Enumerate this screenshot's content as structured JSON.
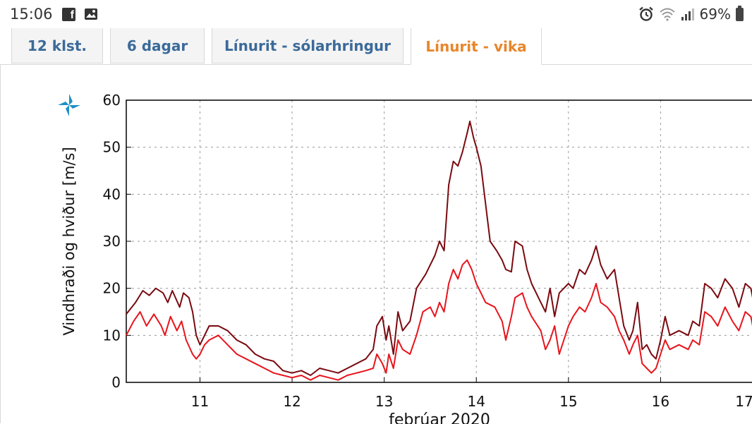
{
  "status_bar": {
    "time": "15:06",
    "battery": "69%",
    "icons": [
      "facebook-icon",
      "image-icon",
      "alarm-icon",
      "wifi-icon",
      "signal-icon",
      "battery-icon"
    ]
  },
  "tabs": [
    {
      "label": "12 klst.",
      "active": false
    },
    {
      "label": "6 dagar",
      "active": false
    },
    {
      "label": "Línurit - sólarhringur",
      "active": false
    },
    {
      "label": "Línurit - vika",
      "active": true
    }
  ],
  "colors": {
    "tab_text": "#3b6a9a",
    "tab_active_text": "#e8862a",
    "gust_line": "#7a0a10",
    "wind_line": "#e8141c",
    "logo": "#1e8fc8"
  },
  "chart_data": {
    "type": "line",
    "title": "",
    "xlabel": "febrúar 2020",
    "ylabel": "Vindhraði og hviður [m/s]",
    "xlim": [
      10.2,
      17
    ],
    "ylim": [
      0,
      60
    ],
    "x_ticks": [
      11,
      12,
      13,
      14,
      15,
      16,
      17
    ],
    "x_tick_labels": [
      "11",
      "12",
      "13",
      "14",
      "15",
      "16",
      "17"
    ],
    "y_ticks": [
      0,
      10,
      20,
      30,
      40,
      50,
      60
    ],
    "y_tick_labels": [
      "0",
      "10",
      "20",
      "30",
      "40",
      "50",
      "60"
    ],
    "grid": true,
    "series": [
      {
        "color": "#7a0a10",
        "points": [
          [
            10.2,
            14.5
          ],
          [
            10.3,
            17
          ],
          [
            10.38,
            19.5
          ],
          [
            10.45,
            18.5
          ],
          [
            10.52,
            20
          ],
          [
            10.6,
            19
          ],
          [
            10.65,
            17
          ],
          [
            10.7,
            19.5
          ],
          [
            10.78,
            16
          ],
          [
            10.82,
            19
          ],
          [
            10.88,
            18
          ],
          [
            10.92,
            15
          ],
          [
            10.96,
            10
          ],
          [
            11.0,
            8
          ],
          [
            11.05,
            10
          ],
          [
            11.1,
            12
          ],
          [
            11.2,
            12
          ],
          [
            11.3,
            11
          ],
          [
            11.4,
            9
          ],
          [
            11.5,
            8
          ],
          [
            11.6,
            6
          ],
          [
            11.7,
            5
          ],
          [
            11.8,
            4.5
          ],
          [
            11.9,
            2.5
          ],
          [
            12.0,
            2
          ],
          [
            12.1,
            2.5
          ],
          [
            12.2,
            1.5
          ],
          [
            12.3,
            3
          ],
          [
            12.4,
            2.5
          ],
          [
            12.5,
            2
          ],
          [
            12.6,
            3
          ],
          [
            12.7,
            4
          ],
          [
            12.8,
            5
          ],
          [
            12.88,
            7
          ],
          [
            12.92,
            12
          ],
          [
            12.98,
            14
          ],
          [
            13.02,
            9
          ],
          [
            13.05,
            12
          ],
          [
            13.1,
            6
          ],
          [
            13.15,
            15
          ],
          [
            13.2,
            11
          ],
          [
            13.28,
            13
          ],
          [
            13.35,
            20
          ],
          [
            13.45,
            23
          ],
          [
            13.55,
            27
          ],
          [
            13.6,
            30
          ],
          [
            13.65,
            28
          ],
          [
            13.7,
            42
          ],
          [
            13.75,
            47
          ],
          [
            13.8,
            46
          ],
          [
            13.85,
            49
          ],
          [
            13.9,
            53
          ],
          [
            13.93,
            55.5
          ],
          [
            13.97,
            52
          ],
          [
            14.0,
            50
          ],
          [
            14.05,
            46
          ],
          [
            14.1,
            38
          ],
          [
            14.15,
            30
          ],
          [
            14.22,
            28
          ],
          [
            14.28,
            26
          ],
          [
            14.32,
            24
          ],
          [
            14.38,
            23.5
          ],
          [
            14.42,
            30
          ],
          [
            14.5,
            29
          ],
          [
            14.55,
            24
          ],
          [
            14.6,
            21
          ],
          [
            14.7,
            17
          ],
          [
            14.75,
            15
          ],
          [
            14.8,
            20
          ],
          [
            14.85,
            14
          ],
          [
            14.9,
            19
          ],
          [
            15.0,
            21
          ],
          [
            15.05,
            20
          ],
          [
            15.12,
            24
          ],
          [
            15.18,
            23
          ],
          [
            15.25,
            26
          ],
          [
            15.3,
            29
          ],
          [
            15.35,
            25
          ],
          [
            15.42,
            22
          ],
          [
            15.5,
            24
          ],
          [
            15.55,
            18
          ],
          [
            15.6,
            12
          ],
          [
            15.66,
            9
          ],
          [
            15.7,
            11
          ],
          [
            15.75,
            17
          ],
          [
            15.8,
            7
          ],
          [
            15.85,
            8
          ],
          [
            15.9,
            6
          ],
          [
            15.95,
            5
          ],
          [
            16.0,
            9
          ],
          [
            16.05,
            14
          ],
          [
            16.1,
            10
          ],
          [
            16.2,
            11
          ],
          [
            16.3,
            10
          ],
          [
            16.35,
            13
          ],
          [
            16.42,
            12
          ],
          [
            16.48,
            21
          ],
          [
            16.55,
            20
          ],
          [
            16.62,
            18
          ],
          [
            16.7,
            22
          ],
          [
            16.78,
            20
          ],
          [
            16.85,
            16
          ],
          [
            16.92,
            21
          ],
          [
            16.98,
            20
          ],
          [
            17.0,
            18
          ]
        ]
      },
      {
        "color": "#e8141c",
        "points": [
          [
            10.2,
            10
          ],
          [
            10.28,
            13
          ],
          [
            10.35,
            15
          ],
          [
            10.42,
            12
          ],
          [
            10.5,
            14.5
          ],
          [
            10.58,
            12
          ],
          [
            10.62,
            10
          ],
          [
            10.68,
            14
          ],
          [
            10.75,
            11
          ],
          [
            10.8,
            13
          ],
          [
            10.85,
            9
          ],
          [
            10.92,
            6
          ],
          [
            10.96,
            5
          ],
          [
            11.0,
            6
          ],
          [
            11.05,
            8
          ],
          [
            11.1,
            9
          ],
          [
            11.2,
            10
          ],
          [
            11.3,
            8
          ],
          [
            11.4,
            6
          ],
          [
            11.5,
            5
          ],
          [
            11.6,
            4
          ],
          [
            11.7,
            3
          ],
          [
            11.8,
            2
          ],
          [
            11.9,
            1.5
          ],
          [
            12.0,
            1
          ],
          [
            12.1,
            1.5
          ],
          [
            12.2,
            0.5
          ],
          [
            12.3,
            1.5
          ],
          [
            12.4,
            1
          ],
          [
            12.5,
            0.5
          ],
          [
            12.6,
            1.5
          ],
          [
            12.7,
            2
          ],
          [
            12.8,
            2.5
          ],
          [
            12.88,
            3
          ],
          [
            12.92,
            6
          ],
          [
            12.98,
            4
          ],
          [
            13.02,
            2
          ],
          [
            13.05,
            6
          ],
          [
            13.1,
            3
          ],
          [
            13.15,
            9
          ],
          [
            13.2,
            7
          ],
          [
            13.28,
            6
          ],
          [
            13.35,
            10
          ],
          [
            13.42,
            15
          ],
          [
            13.5,
            16
          ],
          [
            13.55,
            14
          ],
          [
            13.6,
            17
          ],
          [
            13.65,
            15
          ],
          [
            13.7,
            21
          ],
          [
            13.75,
            24
          ],
          [
            13.8,
            22
          ],
          [
            13.85,
            25
          ],
          [
            13.9,
            26
          ],
          [
            13.95,
            24
          ],
          [
            14.0,
            21
          ],
          [
            14.05,
            19
          ],
          [
            14.1,
            17
          ],
          [
            14.2,
            16
          ],
          [
            14.28,
            13
          ],
          [
            14.32,
            9
          ],
          [
            14.38,
            14
          ],
          [
            14.42,
            18
          ],
          [
            14.5,
            19
          ],
          [
            14.55,
            16
          ],
          [
            14.6,
            14
          ],
          [
            14.7,
            11
          ],
          [
            14.75,
            7
          ],
          [
            14.8,
            9
          ],
          [
            14.85,
            12
          ],
          [
            14.9,
            6
          ],
          [
            15.0,
            12
          ],
          [
            15.05,
            14
          ],
          [
            15.12,
            16
          ],
          [
            15.18,
            15
          ],
          [
            15.25,
            18
          ],
          [
            15.3,
            21
          ],
          [
            15.35,
            17
          ],
          [
            15.42,
            16
          ],
          [
            15.5,
            14
          ],
          [
            15.55,
            11
          ],
          [
            15.6,
            9
          ],
          [
            15.66,
            6
          ],
          [
            15.7,
            8
          ],
          [
            15.75,
            10
          ],
          [
            15.8,
            4
          ],
          [
            15.85,
            3
          ],
          [
            15.9,
            2
          ],
          [
            15.95,
            3
          ],
          [
            16.0,
            6
          ],
          [
            16.05,
            9
          ],
          [
            16.1,
            7
          ],
          [
            16.2,
            8
          ],
          [
            16.3,
            7
          ],
          [
            16.35,
            9
          ],
          [
            16.42,
            8
          ],
          [
            16.48,
            15
          ],
          [
            16.55,
            14
          ],
          [
            16.62,
            12
          ],
          [
            16.7,
            16
          ],
          [
            16.78,
            13
          ],
          [
            16.85,
            11
          ],
          [
            16.92,
            15
          ],
          [
            16.98,
            14
          ],
          [
            17.0,
            12
          ]
        ]
      }
    ]
  }
}
